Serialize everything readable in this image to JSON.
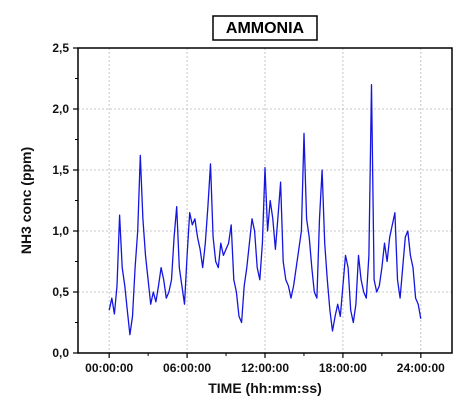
{
  "chart_data": {
    "type": "line",
    "title": "AMMONIA",
    "xlabel": "TIME (hh:mm:ss)",
    "ylabel": "NH3 conc (ppm)",
    "x_ticks": [
      "00:00:00",
      "06:00:00",
      "12:00:00",
      "18:00:00",
      "24:00:00"
    ],
    "x_tick_hours": [
      0,
      6,
      12,
      18,
      24
    ],
    "y_ticks": [
      "0,0",
      "0,5",
      "1,0",
      "1,5",
      "2,0",
      "2,5"
    ],
    "y_tick_values": [
      0,
      0.5,
      1.0,
      1.5,
      2.0,
      2.5
    ],
    "xlim_hours": [
      -2.4,
      26.4
    ],
    "ylim": [
      0,
      2.5
    ],
    "grid": true,
    "line_color": "#1515e0",
    "series": [
      {
        "x_hours": [
          0.0,
          0.2,
          0.4,
          0.6,
          0.8,
          1.0,
          1.2,
          1.4,
          1.6,
          1.8,
          2.0,
          2.2,
          2.4,
          2.6,
          2.8,
          3.0,
          3.2,
          3.4,
          3.6,
          3.8,
          4.0,
          4.2,
          4.4,
          4.6,
          4.8,
          5.0,
          5.2,
          5.4,
          5.6,
          5.8,
          6.0,
          6.2,
          6.4,
          6.6,
          6.8,
          7.0,
          7.2,
          7.4,
          7.6,
          7.8,
          8.0,
          8.2,
          8.4,
          8.6,
          8.8,
          9.0,
          9.2,
          9.4,
          9.6,
          9.8,
          10.0,
          10.2,
          10.4,
          10.6,
          10.8,
          11.0,
          11.2,
          11.4,
          11.6,
          11.8,
          12.0,
          12.2,
          12.4,
          12.6,
          12.8,
          13.0,
          13.2,
          13.4,
          13.6,
          13.8,
          14.0,
          14.2,
          14.4,
          14.6,
          14.8,
          15.0,
          15.2,
          15.4,
          15.6,
          15.8,
          16.0,
          16.2,
          16.4,
          16.6,
          16.8,
          17.0,
          17.2,
          17.4,
          17.6,
          17.8,
          18.0,
          18.2,
          18.4,
          18.6,
          18.8,
          19.0,
          19.2,
          19.4,
          19.6,
          19.8,
          20.0,
          20.2,
          20.4,
          20.6,
          20.8,
          21.0,
          21.2,
          21.4,
          21.6,
          21.8,
          22.0,
          22.2,
          22.4,
          22.6,
          22.8,
          23.0,
          23.2,
          23.4,
          23.6,
          23.8,
          24.0
        ],
        "values": [
          0.35,
          0.45,
          0.32,
          0.55,
          1.13,
          0.7,
          0.55,
          0.35,
          0.15,
          0.3,
          0.7,
          1.0,
          1.62,
          1.1,
          0.8,
          0.6,
          0.4,
          0.5,
          0.42,
          0.55,
          0.7,
          0.6,
          0.45,
          0.5,
          0.6,
          0.95,
          1.2,
          0.7,
          0.55,
          0.4,
          0.8,
          1.15,
          1.05,
          1.1,
          0.95,
          0.85,
          0.7,
          0.9,
          1.2,
          1.55,
          0.95,
          0.75,
          0.7,
          0.9,
          0.8,
          0.85,
          0.9,
          1.05,
          0.6,
          0.5,
          0.3,
          0.25,
          0.55,
          0.7,
          0.9,
          1.1,
          1.0,
          0.7,
          0.6,
          0.9,
          1.52,
          1.0,
          1.25,
          1.1,
          0.85,
          1.12,
          1.4,
          0.75,
          0.6,
          0.55,
          0.45,
          0.55,
          0.7,
          0.85,
          1.0,
          1.8,
          1.1,
          0.95,
          0.7,
          0.5,
          0.45,
          1.1,
          1.5,
          0.9,
          0.6,
          0.35,
          0.18,
          0.3,
          0.4,
          0.3,
          0.55,
          0.8,
          0.7,
          0.35,
          0.25,
          0.4,
          0.8,
          0.6,
          0.5,
          0.45,
          0.8,
          2.2,
          0.6,
          0.5,
          0.55,
          0.7,
          0.9,
          0.75,
          0.95,
          1.05,
          1.15,
          0.6,
          0.45,
          0.7,
          0.95,
          1.0,
          0.8,
          0.7,
          0.45,
          0.4,
          0.28
        ]
      }
    ]
  }
}
